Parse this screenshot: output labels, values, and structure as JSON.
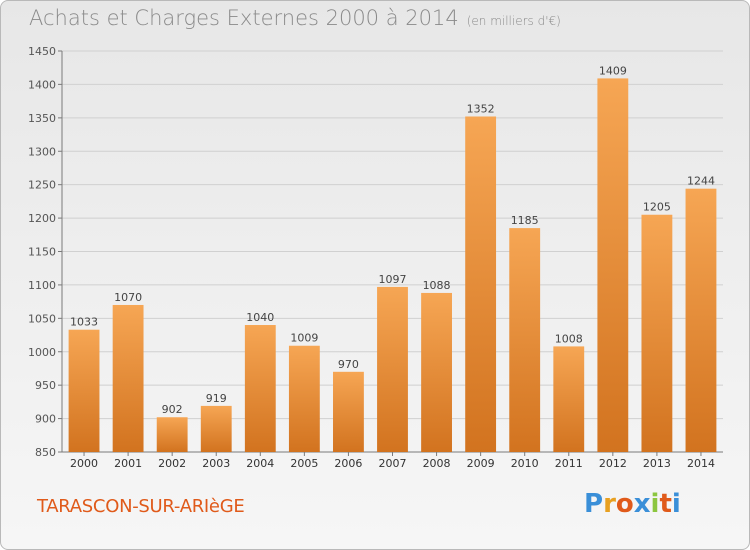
{
  "title": "Achats et Charges Externes 2000 à 2014",
  "unit": "(en milliers d'€)",
  "city": "TARASCON-SUR-ARIèGE",
  "logo": {
    "letters": [
      "P",
      "r",
      "o",
      "x",
      "i",
      "t",
      "i"
    ],
    "colors": [
      "#3a8fd8",
      "#e8a020",
      "#e05a1a",
      "#3a8fd8",
      "#8cc63f",
      "#e05a1a",
      "#3a8fd8"
    ]
  },
  "colors": {
    "bar_light": "#f6a654",
    "bar_dark": "#d2731f",
    "grid": "#d0d0d0",
    "axis": "#7a7a7a"
  },
  "chart_data": {
    "type": "bar",
    "title": "Achats et Charges Externes 2000 à 2014",
    "subtitle": "(en milliers d'€)",
    "categories": [
      "2000",
      "2001",
      "2002",
      "2003",
      "2004",
      "2005",
      "2006",
      "2007",
      "2008",
      "2009",
      "2010",
      "2011",
      "2012",
      "2013",
      "2014"
    ],
    "values": [
      1033,
      1070,
      902,
      919,
      1040,
      1009,
      970,
      1097,
      1088,
      1352,
      1185,
      1008,
      1409,
      1205,
      1244
    ],
    "ylim": [
      850,
      1450
    ],
    "yticks": [
      850,
      900,
      950,
      1000,
      1050,
      1100,
      1150,
      1200,
      1250,
      1300,
      1350,
      1400,
      1450
    ],
    "grid": true
  }
}
